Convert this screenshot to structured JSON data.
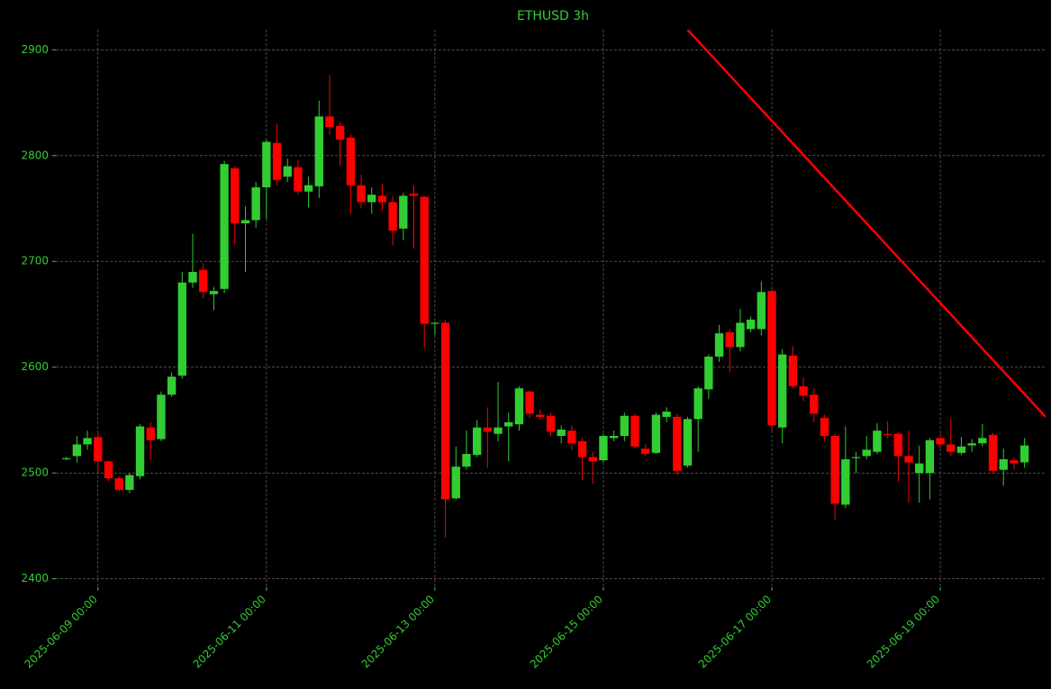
{
  "chart_data": {
    "type": "candlestick",
    "title": "ETHUSD 3h",
    "x": [
      "2025-06-08 15:00",
      "2025-06-08 18:00",
      "2025-06-08 21:00",
      "2025-06-09 00:00",
      "2025-06-09 03:00",
      "2025-06-09 06:00",
      "2025-06-09 09:00",
      "2025-06-09 12:00",
      "2025-06-09 15:00",
      "2025-06-09 18:00",
      "2025-06-09 21:00",
      "2025-06-10 00:00",
      "2025-06-10 03:00",
      "2025-06-10 06:00",
      "2025-06-10 09:00",
      "2025-06-10 12:00",
      "2025-06-10 15:00",
      "2025-06-10 18:00",
      "2025-06-10 21:00",
      "2025-06-11 00:00",
      "2025-06-11 03:00",
      "2025-06-11 06:00",
      "2025-06-11 09:00",
      "2025-06-11 12:00",
      "2025-06-11 15:00",
      "2025-06-11 18:00",
      "2025-06-11 21:00",
      "2025-06-12 00:00",
      "2025-06-12 03:00",
      "2025-06-12 06:00",
      "2025-06-12 09:00",
      "2025-06-12 12:00",
      "2025-06-12 15:00",
      "2025-06-12 18:00",
      "2025-06-12 21:00",
      "2025-06-13 00:00",
      "2025-06-13 03:00",
      "2025-06-13 06:00",
      "2025-06-13 09:00",
      "2025-06-13 12:00",
      "2025-06-13 15:00",
      "2025-06-13 18:00",
      "2025-06-13 21:00",
      "2025-06-14 00:00",
      "2025-06-14 03:00",
      "2025-06-14 06:00",
      "2025-06-14 09:00",
      "2025-06-14 12:00",
      "2025-06-14 15:00",
      "2025-06-14 18:00",
      "2025-06-14 21:00",
      "2025-06-15 00:00",
      "2025-06-15 03:00",
      "2025-06-15 06:00",
      "2025-06-15 09:00",
      "2025-06-15 12:00",
      "2025-06-15 15:00",
      "2025-06-15 18:00",
      "2025-06-15 21:00",
      "2025-06-16 00:00",
      "2025-06-16 03:00",
      "2025-06-16 06:00",
      "2025-06-16 09:00",
      "2025-06-16 12:00",
      "2025-06-16 15:00",
      "2025-06-16 18:00",
      "2025-06-16 21:00",
      "2025-06-17 00:00",
      "2025-06-17 03:00",
      "2025-06-17 06:00",
      "2025-06-17 09:00",
      "2025-06-17 12:00",
      "2025-06-17 15:00",
      "2025-06-17 18:00",
      "2025-06-17 21:00",
      "2025-06-18 00:00",
      "2025-06-18 03:00",
      "2025-06-18 06:00",
      "2025-06-18 09:00",
      "2025-06-18 12:00",
      "2025-06-18 15:00",
      "2025-06-18 18:00",
      "2025-06-18 21:00",
      "2025-06-19 00:00",
      "2025-06-19 03:00",
      "2025-06-19 06:00",
      "2025-06-19 09:00",
      "2025-06-19 12:00",
      "2025-06-19 15:00",
      "2025-06-19 18:00",
      "2025-06-19 21:00",
      "2025-06-20 00:00"
    ],
    "open": [
      2513,
      2516,
      2527,
      2534,
      2511,
      2495,
      2484,
      2497,
      2543,
      2532,
      2574,
      2592,
      2680,
      2692,
      2669,
      2674,
      2788,
      2736,
      2739,
      2770,
      2812,
      2780,
      2789,
      2766,
      2771,
      2837,
      2828,
      2817,
      2772,
      2756,
      2762,
      2756,
      2731,
      2764,
      2761,
      2641,
      2642,
      2476,
      2506,
      2517,
      2543,
      2537,
      2544,
      2546,
      2577,
      2555,
      2554,
      2535,
      2540,
      2530,
      2515,
      2512,
      2533,
      2535,
      2554,
      2523,
      2519,
      2553,
      2553,
      2507,
      2551,
      2579,
      2610,
      2633,
      2619,
      2636,
      2636,
      2672,
      2543,
      2611,
      2582,
      2574,
      2552,
      2535,
      2470,
      2514,
      2516,
      2520,
      2537,
      2537,
      2516,
      2500,
      2500,
      2533,
      2527,
      2519,
      2526,
      2528,
      2536,
      2503,
      2512,
      2510
    ],
    "high": [
      2515,
      2535,
      2540,
      2540,
      2512,
      2497,
      2500,
      2546,
      2548,
      2577,
      2595,
      2690,
      2726,
      2698,
      2676,
      2795,
      2790,
      2752,
      2775,
      2815,
      2830,
      2797,
      2796,
      2780,
      2852,
      2876,
      2832,
      2820,
      2782,
      2770,
      2773,
      2762,
      2765,
      2772,
      2762,
      2643,
      2645,
      2525,
      2540,
      2550,
      2562,
      2586,
      2557,
      2582,
      2578,
      2560,
      2557,
      2545,
      2545,
      2533,
      2520,
      2537,
      2540,
      2557,
      2556,
      2527,
      2557,
      2562,
      2556,
      2553,
      2582,
      2612,
      2640,
      2636,
      2655,
      2648,
      2681,
      2674,
      2617,
      2620,
      2590,
      2580,
      2555,
      2537,
      2544,
      2520,
      2535,
      2547,
      2549,
      2539,
      2540,
      2526,
      2533,
      2537,
      2551,
      2534,
      2532,
      2546,
      2538,
      2523,
      2515,
      2533
    ],
    "low": [
      2512,
      2510,
      2522,
      2502,
      2492,
      2482,
      2481,
      2494,
      2512,
      2530,
      2572,
      2589,
      2675,
      2665,
      2654,
      2670,
      2716,
      2690,
      2732,
      2740,
      2772,
      2775,
      2763,
      2751,
      2760,
      2820,
      2790,
      2745,
      2750,
      2745,
      2748,
      2715,
      2720,
      2712,
      2618,
      2630,
      2439,
      2475,
      2503,
      2515,
      2505,
      2530,
      2511,
      2540,
      2552,
      2550,
      2535,
      2528,
      2522,
      2493,
      2490,
      2510,
      2530,
      2530,
      2523,
      2516,
      2518,
      2548,
      2498,
      2505,
      2520,
      2570,
      2605,
      2595,
      2615,
      2633,
      2630,
      2540,
      2528,
      2580,
      2568,
      2548,
      2530,
      2456,
      2467,
      2500,
      2513,
      2518,
      2533,
      2492,
      2472,
      2472,
      2475,
      2523,
      2516,
      2517,
      2520,
      2525,
      2500,
      2488,
      2503,
      2505
    ],
    "close": [
      2514,
      2527,
      2533,
      2511,
      2495,
      2484,
      2498,
      2544,
      2531,
      2574,
      2591,
      2680,
      2690,
      2671,
      2672,
      2792,
      2736,
      2739,
      2770,
      2813,
      2777,
      2790,
      2766,
      2772,
      2837,
      2827,
      2815,
      2772,
      2756,
      2763,
      2756,
      2729,
      2762,
      2762,
      2641,
      2642,
      2475,
      2506,
      2518,
      2543,
      2539,
      2543,
      2548,
      2580,
      2556,
      2553,
      2539,
      2541,
      2528,
      2515,
      2511,
      2535,
      2535,
      2554,
      2525,
      2518,
      2555,
      2558,
      2502,
      2551,
      2580,
      2610,
      2632,
      2619,
      2642,
      2645,
      2671,
      2545,
      2612,
      2582,
      2573,
      2556,
      2535,
      2471,
      2513,
      2515,
      2522,
      2540,
      2536,
      2516,
      2510,
      2509,
      2531,
      2527,
      2520,
      2525,
      2528,
      2533,
      2502,
      2513,
      2509,
      2526
    ],
    "up_color": "#32cd32",
    "down_color": "#ff0000",
    "trendline": {
      "x": [
        "2025-06-16 00:00",
        "2025-06-20 06:00"
      ],
      "y": [
        2919,
        2553
      ],
      "color": "#ff0000"
    },
    "xlim": [
      "2025-06-08 12:00",
      "2025-06-20 06:00"
    ],
    "xticks": [
      "2025-06-09 00:00",
      "2025-06-11 00:00",
      "2025-06-13 00:00",
      "2025-06-15 00:00",
      "2025-06-17 00:00",
      "2025-06-19 00:00"
    ],
    "ylim": [
      2392,
      2919
    ],
    "yticks": [
      2400,
      2500,
      2600,
      2700,
      2800,
      2900
    ],
    "grid": true
  }
}
